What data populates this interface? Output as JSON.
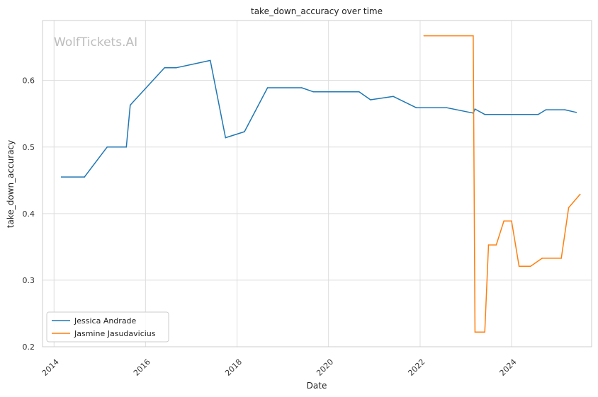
{
  "watermark": "WolfTickets.AI",
  "chart_data": {
    "type": "line",
    "title": "take_down_accuracy over time",
    "xlabel": "Date",
    "ylabel": "take_down_accuracy",
    "xlim": [
      "2013-10-01",
      "2025-10-01"
    ],
    "ylim": [
      0.2,
      0.69
    ],
    "x_ticks": [
      "2014",
      "2016",
      "2018",
      "2020",
      "2022",
      "2024"
    ],
    "y_ticks": [
      "0.2",
      "0.3",
      "0.4",
      "0.5",
      "0.6"
    ],
    "grid": true,
    "legend_position": "lower-left",
    "colors": {
      "jessica": "#1f77b4",
      "jasmine": "#ff7f0e"
    },
    "series": [
      {
        "name": "Jessica Andrade",
        "color": "#1f77b4",
        "points": [
          [
            "2014-03-01",
            0.455
          ],
          [
            "2014-09-01",
            0.455
          ],
          [
            "2015-03-01",
            0.5
          ],
          [
            "2015-08-01",
            0.5
          ],
          [
            "2015-09-01",
            0.563
          ],
          [
            "2016-06-01",
            0.619
          ],
          [
            "2016-09-01",
            0.619
          ],
          [
            "2017-06-01",
            0.63
          ],
          [
            "2017-10-01",
            0.514
          ],
          [
            "2018-03-01",
            0.523
          ],
          [
            "2018-09-01",
            0.589
          ],
          [
            "2019-06-01",
            0.589
          ],
          [
            "2019-09-01",
            0.583
          ],
          [
            "2020-09-01",
            0.583
          ],
          [
            "2020-12-01",
            0.571
          ],
          [
            "2021-06-01",
            0.576
          ],
          [
            "2021-12-01",
            0.559
          ],
          [
            "2022-08-01",
            0.559
          ],
          [
            "2023-03-01",
            0.551
          ],
          [
            "2023-03-15",
            0.557
          ],
          [
            "2023-06-01",
            0.549
          ],
          [
            "2024-08-01",
            0.549
          ],
          [
            "2024-10-01",
            0.556
          ],
          [
            "2025-03-01",
            0.556
          ],
          [
            "2025-06-01",
            0.552
          ]
        ]
      },
      {
        "name": "Jasmine Jasudavicius",
        "color": "#ff7f0e",
        "points": [
          [
            "2022-02-01",
            0.667
          ],
          [
            "2023-03-01",
            0.667
          ],
          [
            "2023-03-15",
            0.222
          ],
          [
            "2023-06-01",
            0.222
          ],
          [
            "2023-07-01",
            0.353
          ],
          [
            "2023-09-01",
            0.353
          ],
          [
            "2023-11-01",
            0.389
          ],
          [
            "2024-01-01",
            0.389
          ],
          [
            "2024-03-01",
            0.321
          ],
          [
            "2024-06-01",
            0.321
          ],
          [
            "2024-09-01",
            0.333
          ],
          [
            "2025-02-01",
            0.333
          ],
          [
            "2025-04-01",
            0.409
          ],
          [
            "2025-07-01",
            0.429
          ]
        ]
      }
    ]
  }
}
